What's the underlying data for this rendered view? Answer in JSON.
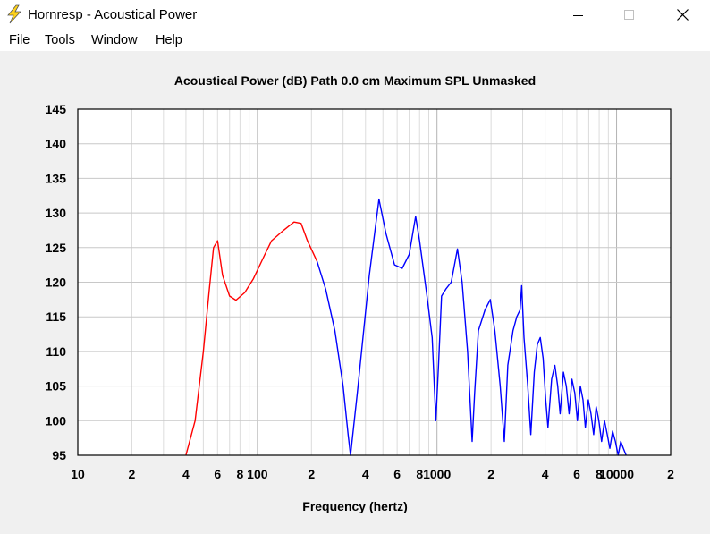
{
  "window": {
    "title": "Hornresp - Acoustical Power"
  },
  "menu": {
    "items": [
      "File",
      "Tools",
      "Window",
      "Help"
    ]
  },
  "plot": {
    "title": "Acoustical Power (dB)   Path 0.0 cm   Maximum SPL   Unmasked"
  },
  "colors": {
    "background": "#f0f0f0",
    "plot_area": "#ffffff",
    "grid": "#c8c8c8",
    "trace_low": "#ff0000",
    "trace_high": "#0000ff"
  },
  "chart_data": {
    "type": "line",
    "title": "Acoustical Power (dB)   Path 0.0 cm   Maximum SPL   Unmasked",
    "xlabel": "Frequency (hertz)",
    "ylabel": "",
    "x_scale": "log",
    "xlim": [
      10,
      20000
    ],
    "ylim": [
      95,
      145
    ],
    "y_ticks": [
      95,
      100,
      105,
      110,
      115,
      120,
      125,
      130,
      135,
      140,
      145
    ],
    "x_tick_labels": [
      {
        "x": 10,
        "label": "10"
      },
      {
        "x": 20,
        "label": "2"
      },
      {
        "x": 40,
        "label": "4"
      },
      {
        "x": 60,
        "label": "6"
      },
      {
        "x": 80,
        "label": "8"
      },
      {
        "x": 100,
        "label": "100"
      },
      {
        "x": 200,
        "label": "2"
      },
      {
        "x": 400,
        "label": "4"
      },
      {
        "x": 600,
        "label": "6"
      },
      {
        "x": 800,
        "label": "8"
      },
      {
        "x": 1000,
        "label": "1000"
      },
      {
        "x": 2000,
        "label": "2"
      },
      {
        "x": 4000,
        "label": "4"
      },
      {
        "x": 6000,
        "label": "6"
      },
      {
        "x": 8000,
        "label": "8"
      },
      {
        "x": 10000,
        "label": "10000"
      },
      {
        "x": 20000,
        "label": "2"
      }
    ],
    "grid": true,
    "series": [
      {
        "color": "#ff0000",
        "points": [
          [
            40,
            95
          ],
          [
            45,
            100
          ],
          [
            50,
            110
          ],
          [
            54,
            119
          ],
          [
            57,
            125
          ],
          [
            60,
            126
          ],
          [
            64,
            121
          ],
          [
            70,
            118
          ],
          [
            76,
            117.4
          ],
          [
            85,
            118.5
          ],
          [
            95,
            120.5
          ],
          [
            110,
            124
          ],
          [
            120,
            126
          ],
          [
            140,
            127.5
          ],
          [
            160,
            128.7
          ],
          [
            175,
            128.5
          ],
          [
            190,
            126
          ],
          [
            215,
            123
          ]
        ]
      },
      {
        "color": "#0000ff",
        "points": [
          [
            215,
            123
          ],
          [
            240,
            119
          ],
          [
            270,
            113
          ],
          [
            300,
            105
          ],
          [
            320,
            98
          ],
          [
            330,
            95
          ],
          [
            360,
            104
          ],
          [
            420,
            121
          ],
          [
            475,
            132
          ],
          [
            520,
            127
          ],
          [
            580,
            122.5
          ],
          [
            640,
            122
          ],
          [
            700,
            124
          ],
          [
            760,
            129.5
          ],
          [
            800,
            126
          ],
          [
            880,
            118
          ],
          [
            940,
            112
          ],
          [
            985,
            100
          ],
          [
            1020,
            108
          ],
          [
            1060,
            118
          ],
          [
            1120,
            119
          ],
          [
            1200,
            120
          ],
          [
            1300,
            124.8
          ],
          [
            1380,
            120
          ],
          [
            1480,
            110
          ],
          [
            1570,
            97
          ],
          [
            1620,
            104
          ],
          [
            1700,
            113
          ],
          [
            1850,
            116
          ],
          [
            1980,
            117.5
          ],
          [
            2100,
            113
          ],
          [
            2250,
            105
          ],
          [
            2370,
            97
          ],
          [
            2480,
            108
          ],
          [
            2650,
            113
          ],
          [
            2780,
            115
          ],
          [
            2900,
            116
          ],
          [
            2960,
            119.5
          ],
          [
            3050,
            112
          ],
          [
            3200,
            105
          ],
          [
            3330,
            98
          ],
          [
            3480,
            107
          ],
          [
            3620,
            111
          ],
          [
            3760,
            112
          ],
          [
            3900,
            109
          ],
          [
            4030,
            103
          ],
          [
            4150,
            99
          ],
          [
            4350,
            106
          ],
          [
            4530,
            108
          ],
          [
            4700,
            105
          ],
          [
            4850,
            101
          ],
          [
            5060,
            107
          ],
          [
            5250,
            105
          ],
          [
            5440,
            101
          ],
          [
            5640,
            106
          ],
          [
            5850,
            104
          ],
          [
            6050,
            100
          ],
          [
            6280,
            105
          ],
          [
            6500,
            103
          ],
          [
            6700,
            99
          ],
          [
            6960,
            103
          ],
          [
            7200,
            101
          ],
          [
            7450,
            98
          ],
          [
            7700,
            102
          ],
          [
            7970,
            100
          ],
          [
            8250,
            97
          ],
          [
            8560,
            100
          ],
          [
            8870,
            98
          ],
          [
            9170,
            96
          ],
          [
            9500,
            98.5
          ],
          [
            9850,
            97
          ],
          [
            10200,
            95
          ],
          [
            10550,
            97
          ],
          [
            10900,
            96
          ],
          [
            11300,
            95
          ]
        ]
      }
    ]
  }
}
